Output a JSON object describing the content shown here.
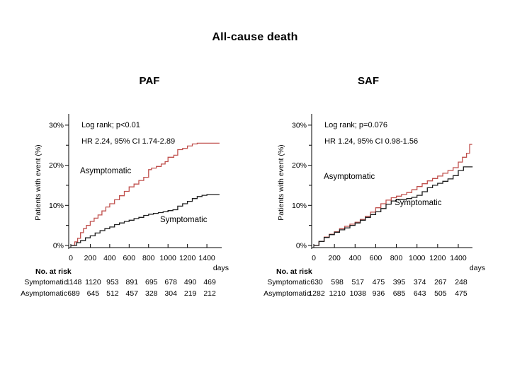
{
  "figure": {
    "title": "All-cause death"
  },
  "colors": {
    "asymptomatic": "#c0504d",
    "symptomatic": "#1f1f1f",
    "axis": "#000000"
  },
  "chart_data": [
    {
      "type": "line",
      "subtype": "kaplan-meier-step",
      "title": "PAF",
      "annotations": [
        "Log rank; p<0.01",
        "HR 2.24, 95% CI 1.74-2.89"
      ],
      "xlabel": "days",
      "ylabel": "Patients with event (%)",
      "xlim": [
        0,
        1550
      ],
      "ylim": [
        0,
        30
      ],
      "xticks": [
        0,
        200,
        400,
        600,
        800,
        1000,
        1200,
        1400
      ],
      "yticks_labeled": [
        0,
        10,
        20,
        30
      ],
      "yticks_minor": [
        5,
        15,
        25
      ],
      "ytick_suffix": "%",
      "grid": false,
      "series": [
        {
          "name": "Asymptomatic",
          "color": "#c0504d",
          "points": [
            [
              0,
              0
            ],
            [
              40,
              0.9
            ],
            [
              70,
              1.8
            ],
            [
              100,
              3.2
            ],
            [
              130,
              4.2
            ],
            [
              160,
              5.0
            ],
            [
              200,
              6.0
            ],
            [
              240,
              6.8
            ],
            [
              280,
              7.6
            ],
            [
              320,
              8.6
            ],
            [
              360,
              9.6
            ],
            [
              400,
              10.4
            ],
            [
              450,
              11.4
            ],
            [
              500,
              12.4
            ],
            [
              550,
              13.5
            ],
            [
              600,
              14.6
            ],
            [
              650,
              15.3
            ],
            [
              700,
              16.2
            ],
            [
              750,
              17.0
            ],
            [
              800,
              18.9
            ],
            [
              830,
              19.3
            ],
            [
              880,
              19.7
            ],
            [
              930,
              20.3
            ],
            [
              970,
              20.9
            ],
            [
              1000,
              22.0
            ],
            [
              1060,
              22.5
            ],
            [
              1100,
              23.9
            ],
            [
              1150,
              24.2
            ],
            [
              1200,
              24.8
            ],
            [
              1250,
              25.3
            ],
            [
              1300,
              25.5
            ],
            [
              1530,
              25.5
            ]
          ]
        },
        {
          "name": "Symptomatic",
          "color": "#1f1f1f",
          "points": [
            [
              0,
              0
            ],
            [
              60,
              0.7
            ],
            [
              100,
              1.2
            ],
            [
              150,
              1.9
            ],
            [
              200,
              2.4
            ],
            [
              250,
              3.1
            ],
            [
              300,
              3.7
            ],
            [
              350,
              4.2
            ],
            [
              400,
              4.6
            ],
            [
              450,
              5.2
            ],
            [
              500,
              5.6
            ],
            [
              550,
              6.0
            ],
            [
              600,
              6.3
            ],
            [
              650,
              6.7
            ],
            [
              700,
              7.0
            ],
            [
              750,
              7.5
            ],
            [
              800,
              7.8
            ],
            [
              850,
              8.0
            ],
            [
              900,
              8.2
            ],
            [
              950,
              8.4
            ],
            [
              1000,
              8.7
            ],
            [
              1050,
              8.9
            ],
            [
              1100,
              9.8
            ],
            [
              1150,
              10.4
            ],
            [
              1200,
              11.0
            ],
            [
              1250,
              11.7
            ],
            [
              1300,
              12.2
            ],
            [
              1350,
              12.5
            ],
            [
              1400,
              12.7
            ],
            [
              1530,
              12.7
            ]
          ]
        }
      ],
      "risk_table": {
        "header": "No. at risk",
        "time_label": "days",
        "times": [
          0,
          200,
          400,
          600,
          800,
          1000,
          1200,
          1400
        ],
        "rows": [
          {
            "label": "Symptomatic",
            "values": [
              1148,
              1120,
              953,
              891,
              695,
              678,
              490,
              469
            ]
          },
          {
            "label": "Asymptomatic",
            "values": [
              689,
              645,
              512,
              457,
              328,
              304,
              219,
              212
            ]
          }
        ]
      }
    },
    {
      "type": "line",
      "subtype": "kaplan-meier-step",
      "title": "SAF",
      "annotations": [
        "Log rank; p=0.076",
        "HR 1.24, 95% CI 0.98-1.56"
      ],
      "xlabel": "days",
      "ylabel": "Patients with event (%)",
      "xlim": [
        0,
        1540
      ],
      "ylim": [
        0,
        30
      ],
      "xticks": [
        0,
        200,
        400,
        600,
        800,
        1000,
        1200,
        1400
      ],
      "yticks_labeled": [
        0,
        10,
        20,
        30
      ],
      "yticks_minor": [
        5,
        15,
        25
      ],
      "ytick_suffix": "%",
      "grid": false,
      "series": [
        {
          "name": "Asymptomatic",
          "color": "#c0504d",
          "points": [
            [
              0,
              0
            ],
            [
              50,
              1.0
            ],
            [
              100,
              2.1
            ],
            [
              150,
              2.8
            ],
            [
              200,
              3.4
            ],
            [
              250,
              4.2
            ],
            [
              300,
              4.8
            ],
            [
              350,
              5.3
            ],
            [
              400,
              5.8
            ],
            [
              450,
              6.5
            ],
            [
              500,
              7.3
            ],
            [
              550,
              8.3
            ],
            [
              600,
              9.4
            ],
            [
              650,
              10.4
            ],
            [
              700,
              11.3
            ],
            [
              750,
              11.9
            ],
            [
              800,
              12.3
            ],
            [
              850,
              12.7
            ],
            [
              900,
              13.2
            ],
            [
              950,
              13.9
            ],
            [
              1000,
              14.7
            ],
            [
              1050,
              15.4
            ],
            [
              1100,
              16.1
            ],
            [
              1150,
              16.7
            ],
            [
              1200,
              17.3
            ],
            [
              1250,
              18.0
            ],
            [
              1300,
              18.7
            ],
            [
              1350,
              19.4
            ],
            [
              1400,
              20.8
            ],
            [
              1440,
              22.0
            ],
            [
              1480,
              23.0
            ],
            [
              1510,
              25.2
            ],
            [
              1535,
              25.2
            ]
          ]
        },
        {
          "name": "Symptomatic",
          "color": "#1f1f1f",
          "points": [
            [
              0,
              0
            ],
            [
              50,
              1.0
            ],
            [
              100,
              2.0
            ],
            [
              150,
              2.7
            ],
            [
              200,
              3.3
            ],
            [
              250,
              3.9
            ],
            [
              300,
              4.4
            ],
            [
              350,
              5.0
            ],
            [
              400,
              5.6
            ],
            [
              450,
              6.3
            ],
            [
              500,
              7.0
            ],
            [
              550,
              7.7
            ],
            [
              600,
              8.4
            ],
            [
              650,
              9.2
            ],
            [
              700,
              10.3
            ],
            [
              750,
              11.1
            ],
            [
              800,
              11.5
            ],
            [
              900,
              11.7
            ],
            [
              950,
              12.0
            ],
            [
              1000,
              12.5
            ],
            [
              1050,
              13.4
            ],
            [
              1100,
              14.4
            ],
            [
              1150,
              15.0
            ],
            [
              1200,
              15.5
            ],
            [
              1250,
              16.0
            ],
            [
              1300,
              16.6
            ],
            [
              1350,
              17.4
            ],
            [
              1400,
              18.7
            ],
            [
              1450,
              19.6
            ],
            [
              1535,
              19.7
            ]
          ]
        }
      ],
      "risk_table": {
        "header": "No. at risk",
        "time_label": "days",
        "times": [
          0,
          200,
          400,
          600,
          800,
          1000,
          1200,
          1400
        ],
        "rows": [
          {
            "label": "Symptomatic",
            "values": [
              630,
              598,
              517,
              475,
              395,
              374,
              267,
              248
            ]
          },
          {
            "label": "Asymptomatic",
            "values": [
              1282,
              1210,
              1038,
              936,
              685,
              643,
              505,
              475
            ]
          }
        ]
      }
    }
  ]
}
